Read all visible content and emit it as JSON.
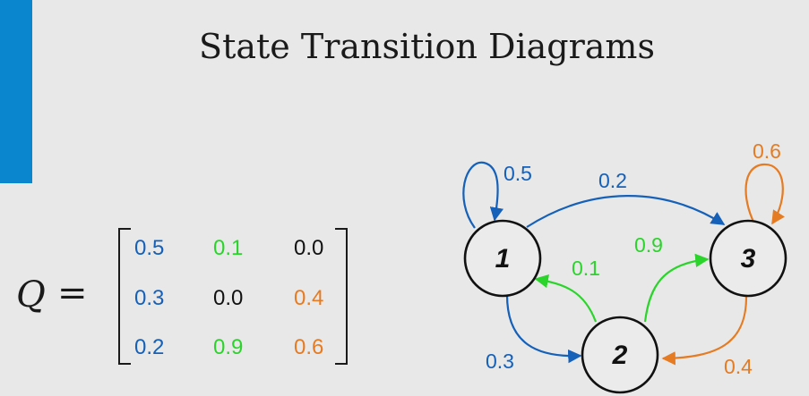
{
  "title": "State Transition Diagrams",
  "matrix": {
    "symbol": "Q",
    "equals": "=",
    "rows": [
      [
        "0.5",
        "0.1",
        "0.0"
      ],
      [
        "0.3",
        "0.0",
        "0.4"
      ],
      [
        "0.2",
        "0.9",
        "0.6"
      ]
    ]
  },
  "colors": {
    "blue": "#1560b8",
    "green": "#2bd42b",
    "orange": "#e57b22",
    "black": "#111111",
    "accent": "#0a86cf"
  },
  "nodes": [
    {
      "id": "1",
      "label": "1"
    },
    {
      "id": "2",
      "label": "2"
    },
    {
      "id": "3",
      "label": "3"
    }
  ],
  "edges": [
    {
      "from": "1",
      "to": "1",
      "label": "0.5"
    },
    {
      "from": "1",
      "to": "3",
      "label": "0.2"
    },
    {
      "from": "1",
      "to": "2",
      "label": "0.3"
    },
    {
      "from": "2",
      "to": "1",
      "label": "0.1"
    },
    {
      "from": "2",
      "to": "3",
      "label": "0.9"
    },
    {
      "from": "3",
      "to": "3",
      "label": "0.6"
    },
    {
      "from": "3",
      "to": "2",
      "label": "0.4"
    }
  ]
}
